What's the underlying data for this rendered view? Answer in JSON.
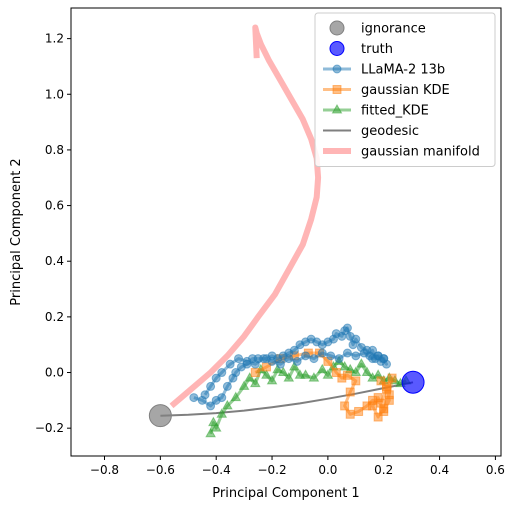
{
  "chart_data": {
    "type": "line",
    "xlabel": "Principal Component 1",
    "ylabel": "Principal Component 2",
    "xlim": [
      -0.92,
      0.62
    ],
    "ylim": [
      -0.3,
      1.31
    ],
    "x_ticks": [
      -0.8,
      -0.6,
      -0.4,
      -0.2,
      0.0,
      0.2,
      0.4,
      0.6
    ],
    "x_tick_labels": [
      "−0.8",
      "−0.6",
      "−0.4",
      "−0.2",
      "0.0",
      "0.2",
      "0.4",
      "0.6"
    ],
    "y_ticks": [
      -0.2,
      0.0,
      0.2,
      0.4,
      0.6,
      0.8,
      1.0,
      1.2
    ],
    "y_tick_labels": [
      "−0.2",
      "0.0",
      "0.2",
      "0.4",
      "0.6",
      "0.8",
      "1.0",
      "1.2"
    ],
    "grid": false,
    "legend_placement": "top-right",
    "legend": [
      {
        "label": "ignorance",
        "kind": "circle",
        "color": "#808080",
        "alpha": 0.7
      },
      {
        "label": "truth",
        "kind": "circle",
        "color": "#0000ff",
        "alpha": 0.65
      },
      {
        "label": "LLaMA-2 13b",
        "kind": "line-marker",
        "marker": "circle",
        "color": "#1f77b4",
        "alpha": 0.5
      },
      {
        "label": "gaussian KDE",
        "kind": "line-marker",
        "marker": "square",
        "color": "#ff7f0e",
        "alpha": 0.5
      },
      {
        "label": "fitted_KDE",
        "kind": "line-marker",
        "marker": "triangle",
        "color": "#2ca02c",
        "alpha": 0.5
      },
      {
        "label": "geodesic",
        "kind": "line",
        "color": "#000000",
        "alpha": 0.5
      },
      {
        "label": "gaussian manifold",
        "kind": "thick-line",
        "color": "#ff6b6b",
        "alpha": 0.5
      }
    ],
    "points": {
      "ignorance": {
        "x": -0.6,
        "y": -0.155,
        "color": "#808080"
      },
      "truth": {
        "x": 0.305,
        "y": -0.035,
        "color": "#0000ff"
      }
    },
    "series": [
      {
        "name": "gaussian manifold",
        "color": "#ff6b6b",
        "x": [
          -0.56,
          -0.49,
          -0.42,
          -0.36,
          -0.3,
          -0.25,
          -0.19,
          -0.14,
          -0.09,
          -0.06,
          -0.04,
          -0.035,
          -0.04,
          -0.06,
          -0.09,
          -0.13,
          -0.17,
          -0.21,
          -0.24,
          -0.255,
          -0.26,
          -0.255
        ],
        "y": [
          -0.12,
          -0.06,
          0.0,
          0.06,
          0.13,
          0.2,
          0.28,
          0.37,
          0.46,
          0.55,
          0.63,
          0.7,
          0.77,
          0.84,
          0.91,
          0.98,
          1.05,
          1.12,
          1.18,
          1.22,
          1.24,
          1.13
        ]
      },
      {
        "name": "geodesic",
        "color": "#000000",
        "x": [
          -0.6,
          -0.5,
          -0.4,
          -0.3,
          -0.2,
          -0.1,
          0.0,
          0.1,
          0.2,
          0.305
        ],
        "y": [
          -0.155,
          -0.152,
          -0.146,
          -0.137,
          -0.125,
          -0.111,
          -0.094,
          -0.076,
          -0.056,
          -0.035
        ]
      },
      {
        "name": "LLaMA-2 13b",
        "color": "#1f77b4",
        "x": [
          -0.48,
          -0.45,
          -0.42,
          -0.4,
          -0.38,
          -0.36,
          -0.34,
          -0.33,
          -0.31,
          -0.29,
          -0.27,
          -0.25,
          -0.22,
          -0.2,
          -0.18,
          -0.16,
          -0.14,
          -0.12,
          -0.1,
          -0.08,
          -0.06,
          -0.04,
          -0.02,
          0.0,
          0.02,
          0.03,
          0.05,
          0.06,
          0.07,
          0.08,
          0.09,
          0.1,
          0.12,
          0.14,
          0.15,
          0.16,
          0.17,
          0.18,
          0.19,
          0.2,
          0.21,
          0.2,
          0.18,
          0.16,
          0.13,
          0.1,
          0.07,
          0.04,
          0.01,
          -0.02,
          -0.05,
          -0.08,
          -0.11,
          -0.14,
          -0.17,
          -0.2,
          -0.23,
          -0.26,
          -0.29,
          -0.32,
          -0.35,
          -0.38,
          -0.4,
          -0.42,
          -0.44
        ],
        "y": [
          -0.09,
          -0.1,
          -0.12,
          -0.1,
          -0.09,
          -0.05,
          -0.02,
          0.0,
          0.02,
          0.03,
          0.05,
          0.05,
          0.05,
          0.06,
          0.05,
          0.06,
          0.07,
          0.08,
          0.1,
          0.11,
          0.12,
          0.11,
          0.1,
          0.11,
          0.12,
          0.14,
          0.13,
          0.15,
          0.16,
          0.13,
          0.1,
          0.12,
          0.09,
          0.08,
          0.06,
          0.08,
          0.05,
          0.06,
          0.04,
          0.05,
          0.03,
          0.05,
          0.06,
          0.05,
          0.07,
          0.06,
          0.07,
          0.05,
          0.06,
          0.07,
          0.05,
          0.06,
          0.04,
          0.05,
          0.03,
          0.04,
          0.05,
          0.03,
          0.04,
          0.05,
          0.03,
          0.0,
          -0.02,
          -0.05,
          -0.08
        ]
      },
      {
        "name": "gaussian KDE",
        "color": "#ff7f0e",
        "x": [
          -0.26,
          -0.22,
          -0.17,
          -0.12,
          -0.07,
          -0.03,
          0.0,
          0.03,
          0.05,
          0.07,
          0.1,
          0.08,
          0.06,
          0.08,
          0.11,
          0.14,
          0.16,
          0.19,
          0.21,
          0.23,
          0.22,
          0.2,
          0.18,
          0.16,
          0.18,
          0.2,
          0.22,
          0.21,
          0.19
        ],
        "y": [
          0.0,
          0.02,
          0.05,
          0.06,
          0.07,
          0.07,
          0.04,
          0.0,
          -0.02,
          -0.01,
          -0.03,
          -0.07,
          -0.12,
          -0.15,
          -0.14,
          -0.12,
          -0.1,
          -0.11,
          -0.06,
          -0.02,
          -0.08,
          -0.13,
          -0.16,
          -0.12,
          -0.09,
          -0.14,
          -0.1,
          -0.05,
          -0.03
        ]
      },
      {
        "name": "fitted_KDE",
        "color": "#2ca02c",
        "x": [
          -0.42,
          -0.41,
          -0.4,
          -0.38,
          -0.36,
          -0.33,
          -0.3,
          -0.28,
          -0.26,
          -0.24,
          -0.22,
          -0.2,
          -0.18,
          -0.16,
          -0.14,
          -0.12,
          -0.1,
          -0.08,
          -0.05,
          -0.02,
          0.0,
          0.02,
          0.04,
          0.06,
          0.08,
          0.1,
          0.12,
          0.14,
          0.16,
          0.18,
          0.2,
          0.22,
          0.24,
          0.26,
          0.28
        ],
        "y": [
          -0.22,
          -0.18,
          -0.2,
          -0.15,
          -0.12,
          -0.09,
          -0.05,
          -0.02,
          -0.04,
          0.01,
          -0.01,
          -0.03,
          0.01,
          0.0,
          -0.02,
          0.02,
          -0.01,
          -0.01,
          -0.02,
          0.01,
          -0.01,
          0.02,
          0.04,
          0.02,
          0.01,
          0.0,
          0.03,
          0.0,
          -0.02,
          -0.01,
          -0.03,
          -0.02,
          -0.03,
          -0.04,
          -0.03
        ]
      }
    ]
  }
}
